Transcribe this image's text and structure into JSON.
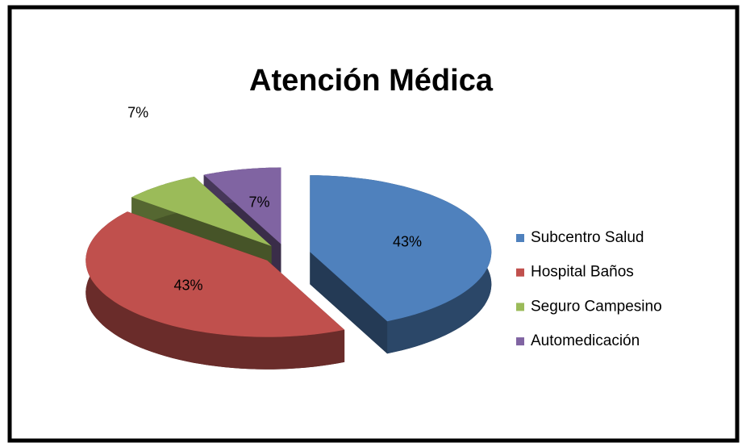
{
  "chart_data": {
    "type": "pie",
    "title": "Atención Médica",
    "categories": [
      "Subcentro Salud",
      "Hospital  Baños",
      "Seguro Campesino",
      "Automedicación"
    ],
    "values": [
      43,
      43,
      7,
      7
    ],
    "value_labels": [
      "43%",
      "43%",
      "7%",
      "7%"
    ],
    "colors": [
      "#4f81bd",
      "#c0504d",
      "#9bbb59",
      "#8064a2"
    ],
    "legend": "right"
  }
}
